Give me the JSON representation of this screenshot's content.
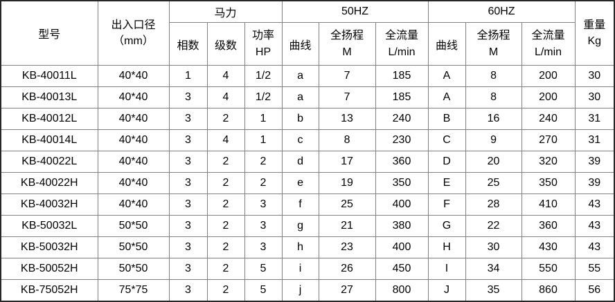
{
  "colors": {
    "background": "#ffffff",
    "text": "#000000",
    "inner_border": "#808080",
    "outer_border": "#262626"
  },
  "table": {
    "headers": {
      "model": "型号",
      "diameter_line1": "出入口径",
      "diameter_line2": "（mm）",
      "horsepower_group": "马力",
      "phase": "相数",
      "stage": "级数",
      "power_line1": "功率",
      "power_line2": "HP",
      "hz50_group": "50HZ",
      "hz60_group": "60HZ",
      "curve": "曲线",
      "head_line1": "全扬程",
      "head_line2": "M",
      "flow_line1": "全流量",
      "flow_line2": "L/min",
      "weight_line1": "重量",
      "weight_line2": "Kg"
    },
    "rows": [
      [
        "KB-40011L",
        "40*40",
        "1",
        "4",
        "1/2",
        "a",
        "7",
        "185",
        "A",
        "8",
        "200",
        "30"
      ],
      [
        "KB-40013L",
        "40*40",
        "3",
        "4",
        "1/2",
        "a",
        "7",
        "185",
        "A",
        "8",
        "200",
        "30"
      ],
      [
        "KB-40012L",
        "40*40",
        "3",
        "2",
        "1",
        "b",
        "13",
        "240",
        "B",
        "16",
        "240",
        "31"
      ],
      [
        "KB-40014L",
        "40*40",
        "3",
        "4",
        "1",
        "c",
        "8",
        "230",
        "C",
        "9",
        "270",
        "31"
      ],
      [
        "KB-40022L",
        "40*40",
        "3",
        "2",
        "2",
        "d",
        "17",
        "360",
        "D",
        "20",
        "320",
        "39"
      ],
      [
        "KB-40022H",
        "40*40",
        "3",
        "2",
        "2",
        "e",
        "19",
        "350",
        "E",
        "25",
        "350",
        "39"
      ],
      [
        "KB-40032H",
        "40*40",
        "3",
        "2",
        "3",
        "f",
        "25",
        "400",
        "F",
        "28",
        "410",
        "43"
      ],
      [
        "KB-50032L",
        "50*50",
        "3",
        "2",
        "3",
        "g",
        "21",
        "380",
        "G",
        "22",
        "360",
        "43"
      ],
      [
        "KB-50032H",
        "50*50",
        "3",
        "2",
        "3",
        "h",
        "23",
        "400",
        "H",
        "30",
        "430",
        "43"
      ],
      [
        "KB-50052H",
        "50*50",
        "3",
        "2",
        "5",
        "i",
        "26",
        "450",
        "I",
        "34",
        "550",
        "55"
      ],
      [
        "KB-75052H",
        "75*75",
        "3",
        "2",
        "5",
        "j",
        "27",
        "800",
        "J",
        "35",
        "860",
        "56"
      ]
    ]
  }
}
